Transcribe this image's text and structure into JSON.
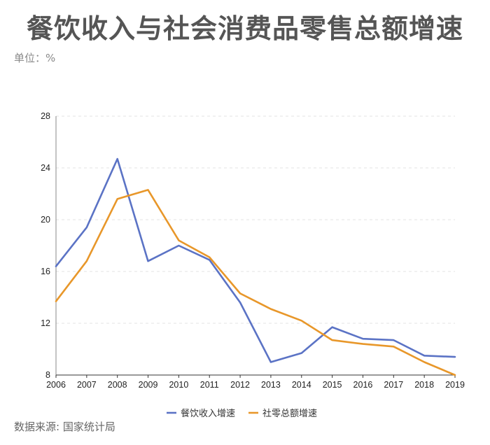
{
  "title": "餐饮收入与社会消费品零售总额增速",
  "unit_label": "单位：%",
  "source_label": "数据来源: 国家统计局",
  "chart_data": {
    "type": "line",
    "x": [
      "2006",
      "2007",
      "2008",
      "2009",
      "2010",
      "2011",
      "2012",
      "2013",
      "2014",
      "2015",
      "2016",
      "2017",
      "2018",
      "2019"
    ],
    "series": [
      {
        "name": "餐饮收入增速",
        "color": "#5b73c5",
        "values": [
          16.4,
          19.4,
          24.7,
          16.8,
          18.0,
          16.9,
          13.6,
          9.0,
          9.7,
          11.7,
          10.8,
          10.7,
          9.5,
          9.4
        ]
      },
      {
        "name": "社零总额增速",
        "color": "#e8972a",
        "values": [
          13.7,
          16.8,
          21.6,
          22.3,
          18.4,
          17.1,
          14.3,
          13.1,
          12.2,
          10.7,
          10.4,
          10.2,
          9.0,
          8.0
        ]
      }
    ],
    "ylim": [
      8,
      28
    ],
    "yticks": [
      8,
      12,
      16,
      20,
      24,
      28
    ],
    "grid": true,
    "legend_position": "bottom"
  }
}
